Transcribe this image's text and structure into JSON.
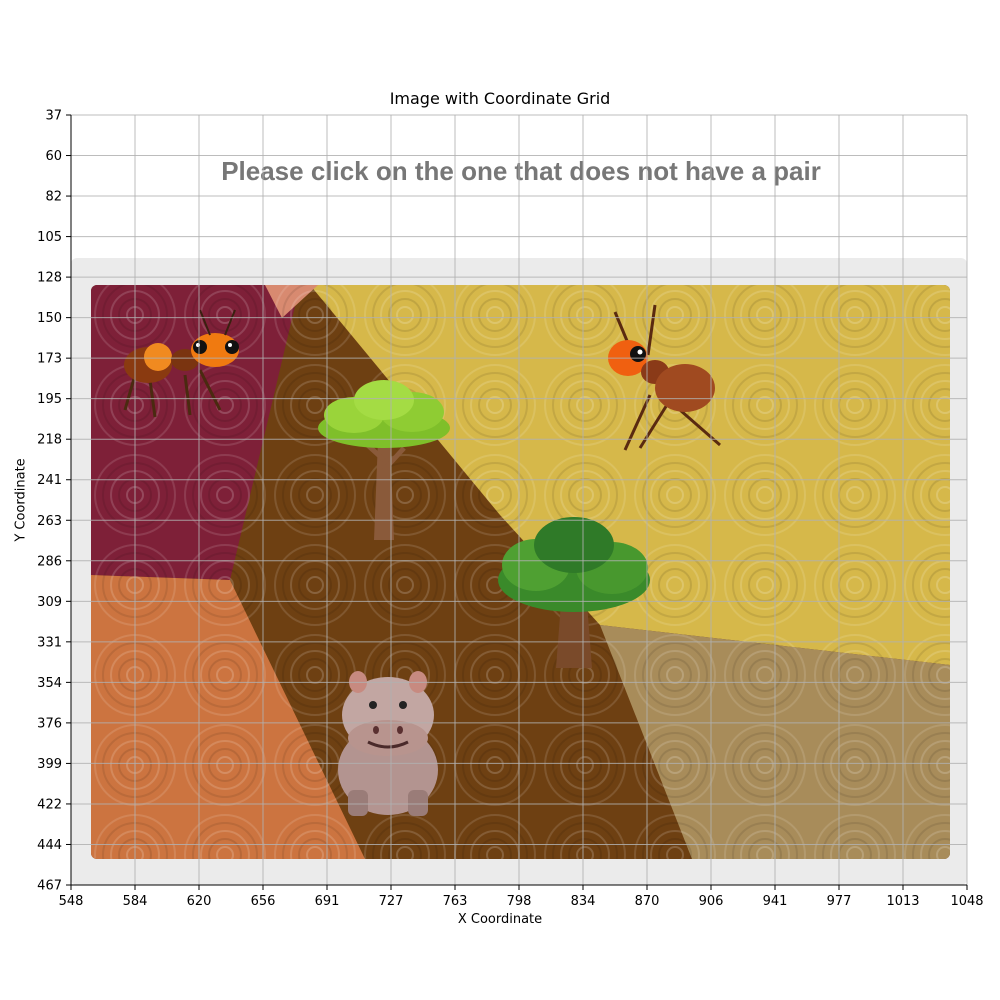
{
  "figure": {
    "title": "Image with Coordinate Grid",
    "xlabel": "X Coordinate",
    "ylabel": "Y Coordinate",
    "x_ticks": [
      "548",
      "584",
      "620",
      "656",
      "691",
      "727",
      "763",
      "798",
      "834",
      "870",
      "906",
      "941",
      "977",
      "1013",
      "1048"
    ],
    "y_ticks": [
      "37",
      "60",
      "82",
      "105",
      "128",
      "150",
      "173",
      "195",
      "218",
      "241",
      "263",
      "286",
      "309",
      "331",
      "354",
      "376",
      "399",
      "422",
      "444",
      "467"
    ]
  },
  "captcha": {
    "prompt": "Please click on the one that does not have a pair",
    "items": [
      {
        "kind": "ant",
        "icon": "ant-icon",
        "x": 605,
        "y": 173
      },
      {
        "kind": "tree",
        "icon": "tree-icon",
        "x": 731,
        "y": 218
      },
      {
        "kind": "ant",
        "icon": "ant-icon",
        "x": 849,
        "y": 195
      },
      {
        "kind": "tree",
        "icon": "tree-icon",
        "x": 831,
        "y": 309
      },
      {
        "kind": "hippo",
        "icon": "hippo-icon",
        "x": 734,
        "y": 399
      }
    ]
  },
  "colors": {
    "panel_bg": "#ebebeb",
    "crimson_region": "#7e2038",
    "brown_region": "#6e4012",
    "yellow_region": "#d6b84a",
    "orange_region": "#cc7440",
    "tan_region": "#a88c5a",
    "prompt_text": "#777777",
    "grid_line": "#b0b0b0"
  }
}
